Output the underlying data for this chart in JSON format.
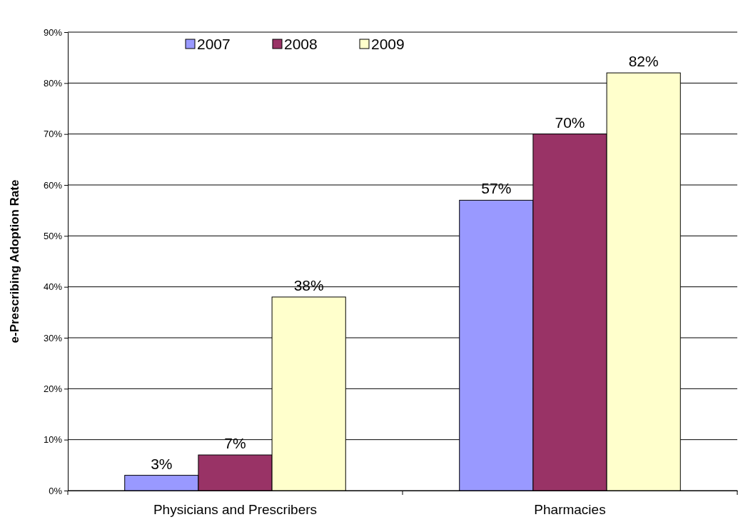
{
  "chart_data": {
    "type": "bar",
    "ylabel": "e-Prescribing Adoption Rate",
    "categories": [
      "Physicians and Prescribers",
      "Pharmacies"
    ],
    "series": [
      {
        "name": "2007",
        "color": "#9999ff",
        "values": [
          3,
          57
        ]
      },
      {
        "name": "2008",
        "color": "#993366",
        "values": [
          7,
          70
        ]
      },
      {
        "name": "2009",
        "color": "#ffffcc",
        "values": [
          38,
          82
        ]
      }
    ],
    "ylim": [
      0,
      90
    ],
    "yticks": [
      {
        "value": 0,
        "label": "0%"
      },
      {
        "value": 10,
        "label": "10%"
      },
      {
        "value": 20,
        "label": "20%"
      },
      {
        "value": 30,
        "label": "30%"
      },
      {
        "value": 40,
        "label": "40%"
      },
      {
        "value": 50,
        "label": "50%"
      },
      {
        "value": 60,
        "label": "60%"
      },
      {
        "value": 70,
        "label": "70%"
      },
      {
        "value": 80,
        "label": "80%"
      },
      {
        "value": 90,
        "label": "90%"
      }
    ],
    "value_labels": [
      [
        "3%",
        "57%"
      ],
      [
        "7%",
        "70%"
      ],
      [
        "38%",
        "82%"
      ]
    ],
    "grid": "y",
    "legend": "top"
  }
}
